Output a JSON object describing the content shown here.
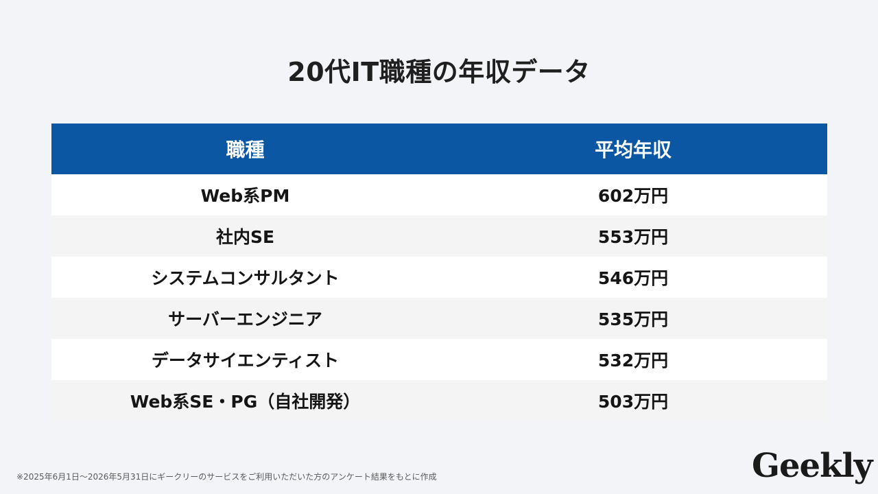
{
  "title": "20代IT職種の年収データ",
  "table": {
    "headers": [
      "職種",
      "平均年収"
    ],
    "rows": [
      {
        "job": "Web系PM",
        "salary": "602万円"
      },
      {
        "job": "社内SE",
        "salary": "553万円"
      },
      {
        "job": "システムコンサルタント",
        "salary": "546万円"
      },
      {
        "job": "サーバーエンジニア",
        "salary": "535万円"
      },
      {
        "job": "データサイエンティスト",
        "salary": "532万円"
      },
      {
        "job": "Web系SE・PG（自社開発）",
        "salary": "503万円"
      }
    ]
  },
  "footnote": "※2025年6月1日〜2026年5月31日にギークリーのサービスをご利用いただいた方のアンケート結果をもとに作成",
  "logo": "Geekly"
}
